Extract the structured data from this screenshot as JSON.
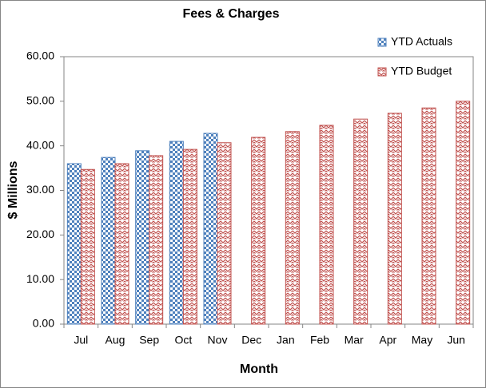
{
  "chart_data": {
    "type": "bar",
    "title": "Fees & Charges",
    "x_label": "Month",
    "y_label": "$ Millions",
    "categories": [
      "Jul",
      "Aug",
      "Sep",
      "Oct",
      "Nov",
      "Dec",
      "Jan",
      "Feb",
      "Mar",
      "Apr",
      "May",
      "Jun"
    ],
    "series": [
      {
        "name": "YTD Actuals",
        "color": "#4f81bd",
        "pattern": "checker",
        "values": [
          36.0,
          37.4,
          38.9,
          41.0,
          42.8,
          null,
          null,
          null,
          null,
          null,
          null,
          null
        ]
      },
      {
        "name": "YTD Budget",
        "color": "#c0504d",
        "pattern": "zigzag",
        "values": [
          34.7,
          36.0,
          37.8,
          39.2,
          40.7,
          41.9,
          43.2,
          44.6,
          46.0,
          47.3,
          48.5,
          50.0
        ]
      }
    ],
    "ylim": [
      0,
      60
    ],
    "yticks": [
      {
        "value": 0,
        "label": "0.00"
      },
      {
        "value": 10,
        "label": "10.00"
      },
      {
        "value": 20,
        "label": "20.00"
      },
      {
        "value": 30,
        "label": "30.00"
      },
      {
        "value": 40,
        "label": "40.00"
      },
      {
        "value": 50,
        "label": "50.00"
      },
      {
        "value": 60,
        "label": "60.00"
      }
    ],
    "grid": false,
    "legend": "top-right"
  }
}
